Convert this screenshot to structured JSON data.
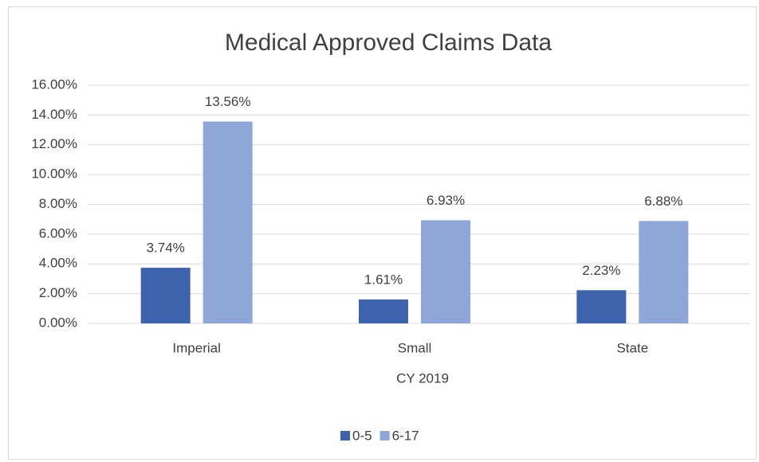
{
  "chart_data": {
    "type": "bar",
    "title": "Medical Approved Claims Data",
    "x_label": "CY 2019",
    "categories": [
      "Imperial",
      "Small",
      "State"
    ],
    "series": [
      {
        "name": "0-5",
        "color": "#3d63ae",
        "values": [
          3.74,
          1.61,
          2.23
        ],
        "value_labels": [
          "3.74%",
          "1.61%",
          "2.23%"
        ]
      },
      {
        "name": "6-17",
        "color": "#8ea6d8",
        "values": [
          13.56,
          6.93,
          6.88
        ],
        "value_labels": [
          "13.56%",
          "6.93%",
          "6.88%"
        ]
      }
    ],
    "ylim": [
      0,
      16
    ],
    "yticks": [
      {
        "value": 0,
        "label": "0.00%"
      },
      {
        "value": 2,
        "label": "2.00%"
      },
      {
        "value": 4,
        "label": "4.00%"
      },
      {
        "value": 6,
        "label": "6.00%"
      },
      {
        "value": 8,
        "label": "8.00%"
      },
      {
        "value": 10,
        "label": "10.00%"
      },
      {
        "value": 12,
        "label": "12.00%"
      },
      {
        "value": 14,
        "label": "14.00%"
      },
      {
        "value": 16,
        "label": "16.00%"
      }
    ],
    "grid": true,
    "legend": "bottom"
  }
}
